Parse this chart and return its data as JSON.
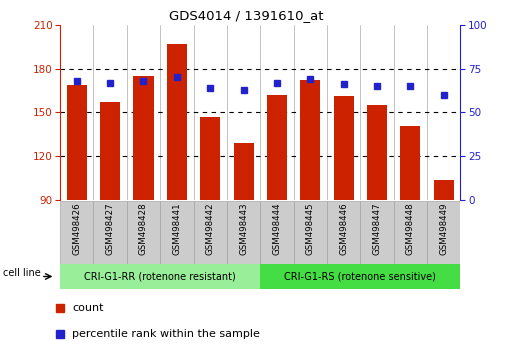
{
  "title": "GDS4014 / 1391610_at",
  "categories": [
    "GSM498426",
    "GSM498427",
    "GSM498428",
    "GSM498441",
    "GSM498442",
    "GSM498443",
    "GSM498444",
    "GSM498445",
    "GSM498446",
    "GSM498447",
    "GSM498448",
    "GSM498449"
  ],
  "counts": [
    169,
    157,
    175,
    197,
    147,
    129,
    162,
    172,
    161,
    155,
    141,
    104
  ],
  "percentile_ranks": [
    68,
    67,
    68,
    70,
    64,
    63,
    67,
    69,
    66,
    65,
    65,
    60
  ],
  "ylim_left": [
    90,
    210
  ],
  "ylim_right": [
    0,
    100
  ],
  "yticks_left": [
    90,
    120,
    150,
    180,
    210
  ],
  "yticks_right": [
    0,
    25,
    50,
    75,
    100
  ],
  "bar_color": "#cc2200",
  "dot_color": "#2222cc",
  "group1_label": "CRI-G1-RR (rotenone resistant)",
  "group2_label": "CRI-G1-RS (rotenone sensitive)",
  "group1_color": "#99ee99",
  "group2_color": "#44dd44",
  "cell_line_label": "cell line",
  "legend_count_label": "count",
  "legend_pct_label": "percentile rank within the sample",
  "tick_label_bg": "#cccccc",
  "group1_indices": [
    0,
    1,
    2,
    3,
    4,
    5
  ],
  "group2_indices": [
    6,
    7,
    8,
    9,
    10,
    11
  ]
}
